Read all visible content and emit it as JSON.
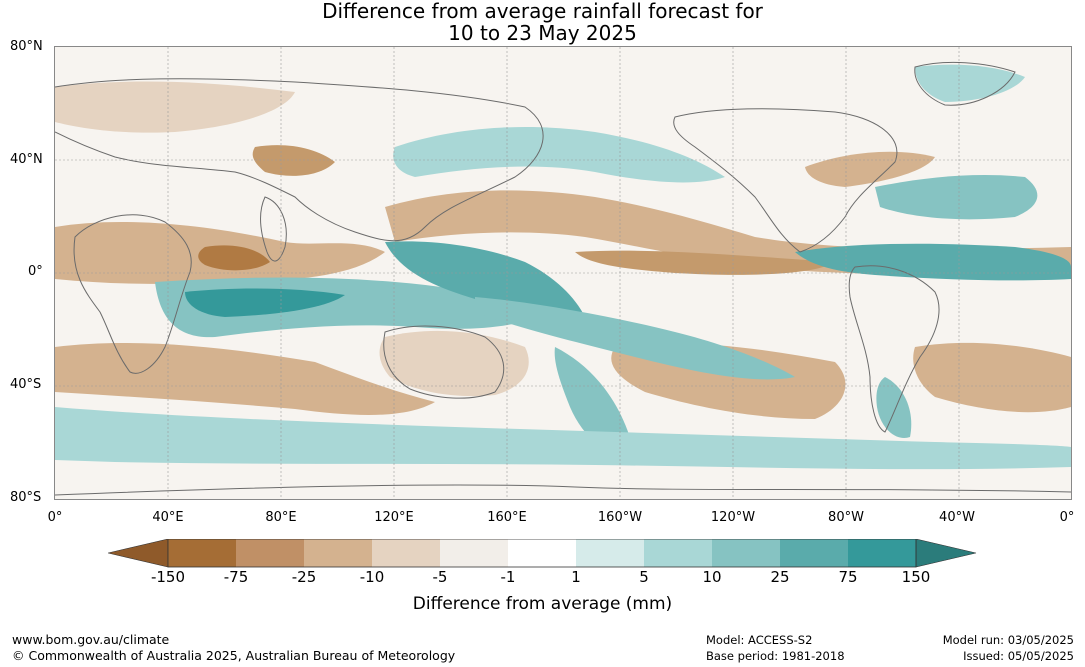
{
  "title": {
    "line1": "Difference from average rainfall forecast for",
    "line2": "10 to 23 May 2025"
  },
  "map": {
    "lat_labels": [
      "80°N",
      "40°N",
      "0°",
      "40°S",
      "80°S"
    ],
    "lon_labels": [
      "0°",
      "40°E",
      "80°E",
      "120°E",
      "160°E",
      "160°W",
      "120°W",
      "80°W",
      "40°W",
      "0°"
    ]
  },
  "colors": {
    "brown_150": "#a56d35",
    "brown_75": "#b07a43",
    "brown_25": "#c49a6c",
    "brown_10": "#d4b28f",
    "brown_5": "#e5d3c1",
    "brown_1": "#f2eee9",
    "neutral": "#ffffff",
    "teal_1": "#d6ebea",
    "teal_5": "#a9d7d6",
    "teal_10": "#86c3c2",
    "teal_25": "#5aabab",
    "teal_75": "#34999a",
    "teal_150": "#2b7c7b",
    "brown_extend": "#8f5a2a",
    "coast": "#6b6b6b",
    "grid": "#9a9a9a"
  },
  "colorbar": {
    "ticks": [
      "-150",
      "-75",
      "-25",
      "-10",
      "-5",
      "-1",
      "1",
      "5",
      "10",
      "25",
      "75",
      "150"
    ],
    "title": "Difference from average (mm)"
  },
  "footer": {
    "url": "www.bom.gov.au/climate",
    "copyright": "© Commonwealth of Australia 2025, Australian Bureau of Meteorology",
    "model": "Model: ACCESS-S2",
    "base_period": "Base period: 1981-2018",
    "model_run": "Model run: 03/05/2025",
    "issued": "Issued: 05/05/2025"
  }
}
